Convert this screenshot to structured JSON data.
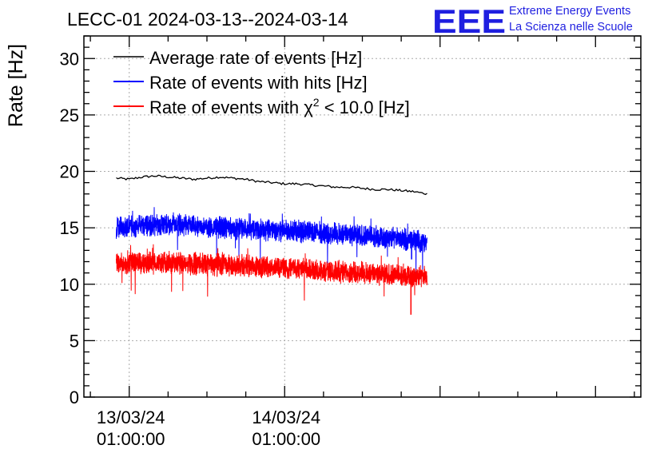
{
  "chart_data": {
    "type": "line",
    "title": "LECC-01 2024-03-13--2024-03-14",
    "xlabel": "",
    "ylabel": "Rate [Hz]",
    "ylim": [
      0,
      32
    ],
    "xlim_hours": [
      -7,
      79
    ],
    "yticks": [
      0,
      5,
      10,
      15,
      20,
      25,
      30
    ],
    "xticks": [
      {
        "hours": 0,
        "date": "13/03/24",
        "time": "01:00:00"
      },
      {
        "hours": 24,
        "date": "14/03/24",
        "time": "01:00:00"
      }
    ],
    "grid": true,
    "legend_position": "top-left",
    "series": [
      {
        "name": "Average rate of events [Hz]",
        "color": "#000000",
        "x": [
          -2,
          0,
          2,
          4,
          6,
          8,
          10,
          12,
          14,
          16,
          18,
          20,
          22,
          24,
          26,
          28,
          30,
          32,
          34,
          36,
          38,
          40,
          42,
          44,
          46
        ],
        "y": [
          19.4,
          19.3,
          19.5,
          19.6,
          19.5,
          19.4,
          19.3,
          19.4,
          19.5,
          19.4,
          19.3,
          19.1,
          19.0,
          18.9,
          18.9,
          18.8,
          18.7,
          18.6,
          18.6,
          18.5,
          18.4,
          18.4,
          18.3,
          18.2,
          18.0
        ]
      },
      {
        "name": "Rate of events with hits [Hz]",
        "color": "#0000ff",
        "x": [
          -2,
          2,
          6,
          10,
          14,
          18,
          22,
          26,
          30,
          34,
          38,
          42,
          46
        ],
        "y": [
          15.0,
          15.2,
          15.3,
          15.1,
          15.0,
          14.9,
          14.8,
          14.7,
          14.5,
          14.4,
          14.2,
          14.0,
          13.7
        ]
      },
      {
        "name": "Rate of events with χ² < 10.0 [Hz]",
        "color": "#ff0000",
        "x": [
          -2,
          2,
          6,
          10,
          14,
          18,
          22,
          26,
          30,
          34,
          38,
          42,
          46
        ],
        "y": [
          11.8,
          11.9,
          11.9,
          11.8,
          11.7,
          11.6,
          11.5,
          11.4,
          11.2,
          11.1,
          10.9,
          10.8,
          10.6
        ]
      }
    ],
    "legend_parts": {
      "chi_prefix": "Rate of events with ",
      "chi_symbol": "χ",
      "chi_sup": "2",
      "chi_suffix": " < 10.0 [Hz]"
    }
  },
  "logo": {
    "mark": "EEE",
    "line1": "Extreme Energy Events",
    "line2": "La Scienza nelle Scuole"
  }
}
